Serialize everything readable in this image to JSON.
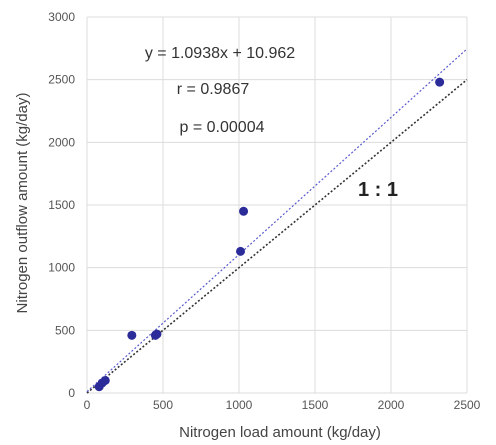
{
  "chart_data": {
    "type": "scatter",
    "xlabel": "Nitrogen load amount  (kg/day)",
    "ylabel": "Nitrogen outflow amount  (kg/day)",
    "xlim": [
      0,
      2500
    ],
    "ylim": [
      0,
      3000
    ],
    "xticks": [
      0,
      500,
      1000,
      1500,
      2000,
      2500
    ],
    "yticks": [
      0,
      500,
      1000,
      1500,
      2000,
      2500,
      3000
    ],
    "grid": true,
    "points": [
      {
        "x": 80,
        "y": 50
      },
      {
        "x": 100,
        "y": 80
      },
      {
        "x": 120,
        "y": 100
      },
      {
        "x": 295,
        "y": 460
      },
      {
        "x": 450,
        "y": 460
      },
      {
        "x": 460,
        "y": 470
      },
      {
        "x": 1010,
        "y": 1130
      },
      {
        "x": 1030,
        "y": 1450
      },
      {
        "x": 2320,
        "y": 2480
      }
    ],
    "regression": {
      "slope": 1.0938,
      "intercept": 10.962,
      "color": "#5a5ad0",
      "style": "dotted"
    },
    "identity_line": {
      "slope": 1,
      "intercept": 0,
      "color": "#333333",
      "style": "dotted"
    },
    "point_color": "#2b2b9a",
    "annotations": {
      "equation": "y = 1.0938x + 10.962",
      "r": "r = 0.9867",
      "p": "p = 0.00004",
      "identity": "1 : 1"
    }
  }
}
